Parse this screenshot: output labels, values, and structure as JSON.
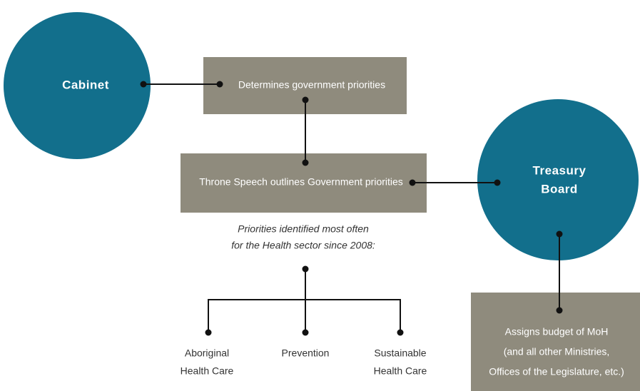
{
  "nodes": [
    {
      "label": "Cabinet"
    },
    {
      "label": "Determines government priorities"
    },
    {
      "label": "Throne Speech outlines Government priorities"
    },
    {
      "label": [
        "Treasury",
        "Board"
      ]
    },
    {
      "label": [
        "Assigns budget of MoH",
        "(and all other Ministries,",
        "Offices of the Legislature, etc.)"
      ]
    }
  ],
  "note": [
    "Priorities identified most often",
    "for the Health sector since 2008:"
  ],
  "priorities": [
    [
      "Aboriginal",
      "Health Care"
    ],
    [
      "Prevention"
    ],
    [
      "Sustainable",
      "Health Care"
    ]
  ]
}
